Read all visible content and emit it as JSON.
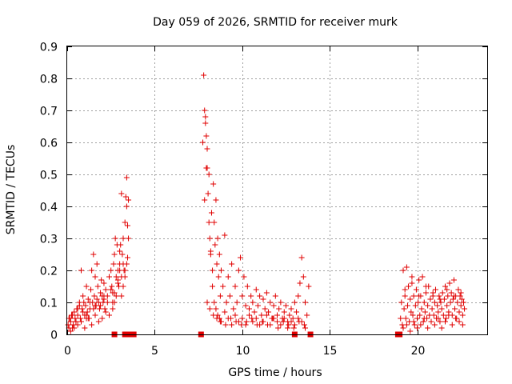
{
  "chart_data": {
    "type": "scatter",
    "title": "Day 059 of 2026, SRMTID for receiver murk",
    "xlabel": "GPS time / hours",
    "ylabel": "SRMTID / TECUs",
    "xlim": [
      0,
      24
    ],
    "ylim": [
      0,
      0.9
    ],
    "xticks": [
      0,
      5,
      10,
      15,
      20
    ],
    "yticks": [
      0,
      0.1,
      0.2,
      0.3,
      0.4,
      0.5,
      0.6,
      0.7,
      0.8,
      0.9
    ],
    "grid": true,
    "marker_color": "#e00000",
    "series": [
      {
        "marker": "plus",
        "x": [
          0.05,
          0.1,
          0.15,
          0.2,
          0.25,
          0.3,
          0.35,
          0.4,
          0.45,
          0.5,
          0.55,
          0.6,
          0.7,
          0.75,
          0.8,
          0.85,
          0.9,
          0.95,
          1.0,
          1.05,
          1.1,
          1.15,
          1.2,
          1.25,
          1.3,
          1.35,
          1.4,
          1.45,
          1.5,
          1.55,
          1.6,
          1.65,
          1.7,
          1.75,
          1.8,
          1.85,
          1.9,
          1.95,
          2.0,
          2.05,
          2.1,
          2.15,
          2.2,
          2.3,
          2.4,
          2.5,
          2.55,
          2.6,
          2.65,
          2.7,
          2.75,
          2.8,
          2.85,
          2.9,
          2.95,
          3.0,
          3.05,
          3.1,
          3.15,
          3.2,
          3.25,
          3.3,
          3.35,
          3.4,
          3.45,
          3.5,
          3.5,
          3.45,
          3.4,
          3.3,
          3.2,
          3.1,
          3.0,
          2.9,
          2.8,
          2.7,
          0.2,
          0.4,
          0.6,
          0.8,
          1.0,
          1.2,
          1.4,
          1.6,
          1.8,
          2.0,
          2.2,
          2.4,
          2.6,
          0.3,
          0.5,
          0.7,
          0.9,
          1.1,
          1.3,
          1.5,
          1.7,
          1.9,
          2.1,
          2.3,
          2.5,
          2.7,
          2.9,
          3.1,
          3.3,
          0.1,
          0.6,
          1.1,
          1.6,
          2.1,
          2.6,
          3.0,
          3.2,
          3.4
        ],
        "y": [
          0.03,
          0.02,
          0.05,
          0.04,
          0.06,
          0.02,
          0.03,
          0.07,
          0.05,
          0.04,
          0.08,
          0.06,
          0.1,
          0.05,
          0.2,
          0.08,
          0.12,
          0.1,
          0.06,
          0.09,
          0.15,
          0.07,
          0.11,
          0.05,
          0.08,
          0.14,
          0.2,
          0.1,
          0.25,
          0.12,
          0.18,
          0.09,
          0.22,
          0.15,
          0.1,
          0.08,
          0.13,
          0.17,
          0.12,
          0.1,
          0.16,
          0.08,
          0.14,
          0.12,
          0.18,
          0.2,
          0.15,
          0.1,
          0.22,
          0.25,
          0.3,
          0.18,
          0.28,
          0.2,
          0.15,
          0.22,
          0.28,
          0.44,
          0.25,
          0.3,
          0.2,
          0.35,
          0.43,
          0.49,
          0.24,
          0.42,
          0.3,
          0.34,
          0.22,
          0.18,
          0.15,
          0.12,
          0.2,
          0.17,
          0.12,
          0.1,
          0.01,
          0.02,
          0.03,
          0.04,
          0.02,
          0.05,
          0.03,
          0.06,
          0.04,
          0.05,
          0.07,
          0.06,
          0.08,
          0.06,
          0.04,
          0.09,
          0.07,
          0.05,
          0.1,
          0.08,
          0.11,
          0.09,
          0.12,
          0.1,
          0.14,
          0.13,
          0.16,
          0.18,
          0.2,
          0.05,
          0.08,
          0.06,
          0.09,
          0.11,
          0.13,
          0.26,
          0.22,
          0.4
        ]
      },
      {
        "marker": "plus",
        "x": [
          7.75,
          7.8,
          7.85,
          7.9,
          7.95,
          8.0,
          8.05,
          8.1,
          8.15,
          8.2,
          8.25,
          8.3,
          8.35,
          8.4,
          8.45,
          8.5,
          8.55,
          8.6,
          8.65,
          8.7,
          8.75,
          8.8,
          8.9,
          9.0,
          9.1,
          9.2,
          9.3,
          9.4,
          9.5,
          9.6,
          9.7,
          9.8,
          9.9,
          10.0,
          10.1,
          10.2,
          10.3,
          10.4,
          10.5,
          10.6,
          10.7,
          10.8,
          10.9,
          11.0,
          11.1,
          11.2,
          11.3,
          11.4,
          11.5,
          11.6,
          11.7,
          11.8,
          11.9,
          12.0,
          12.1,
          12.2,
          12.3,
          12.4,
          12.5,
          12.6,
          12.7,
          12.8,
          12.9,
          13.0,
          13.1,
          13.2,
          13.3,
          13.4,
          13.5,
          13.6,
          13.7,
          13.8,
          7.9,
          7.95,
          8.0,
          8.1,
          8.2,
          8.3,
          8.4,
          8.5,
          8.6,
          8.7,
          8.8,
          9.0,
          9.2,
          9.4,
          9.6,
          9.8,
          10.0,
          10.2,
          10.4,
          10.6,
          10.8,
          11.0,
          11.2,
          11.4,
          11.6,
          11.8,
          12.0,
          12.2,
          12.4,
          12.6,
          12.8,
          13.0,
          13.2,
          13.4,
          13.6,
          7.85,
          8.0,
          8.15,
          8.35,
          8.55,
          8.75,
          9.05,
          9.35,
          9.65,
          9.95,
          10.25,
          10.55,
          10.85,
          11.15,
          11.45,
          11.75,
          12.05,
          12.35,
          12.65,
          12.95,
          13.25,
          13.55
        ],
        "y": [
          0.6,
          0.81,
          0.7,
          0.66,
          0.52,
          0.58,
          0.44,
          0.5,
          0.3,
          0.25,
          0.38,
          0.2,
          0.47,
          0.35,
          0.28,
          0.42,
          0.22,
          0.3,
          0.18,
          0.25,
          0.12,
          0.2,
          0.15,
          0.31,
          0.1,
          0.18,
          0.12,
          0.22,
          0.08,
          0.15,
          0.1,
          0.2,
          0.24,
          0.12,
          0.18,
          0.09,
          0.15,
          0.08,
          0.12,
          0.1,
          0.07,
          0.14,
          0.09,
          0.12,
          0.06,
          0.11,
          0.08,
          0.13,
          0.07,
          0.1,
          0.05,
          0.09,
          0.12,
          0.06,
          0.08,
          0.1,
          0.05,
          0.07,
          0.09,
          0.04,
          0.06,
          0.08,
          0.05,
          0.1,
          0.07,
          0.12,
          0.16,
          0.24,
          0.18,
          0.1,
          0.06,
          0.15,
          0.68,
          0.62,
          0.52,
          0.35,
          0.26,
          0.15,
          0.1,
          0.08,
          0.06,
          0.05,
          0.04,
          0.07,
          0.05,
          0.03,
          0.06,
          0.04,
          0.05,
          0.03,
          0.06,
          0.04,
          0.05,
          0.03,
          0.04,
          0.06,
          0.03,
          0.05,
          0.04,
          0.03,
          0.05,
          0.02,
          0.04,
          0.03,
          0.05,
          0.04,
          0.02,
          0.42,
          0.1,
          0.08,
          0.06,
          0.05,
          0.04,
          0.03,
          0.05,
          0.04,
          0.03,
          0.04,
          0.05,
          0.03,
          0.04,
          0.03,
          0.05,
          0.02,
          0.04,
          0.03,
          0.02,
          0.04,
          0.03
        ]
      },
      {
        "marker": "plus",
        "x": [
          19.05,
          19.1,
          19.15,
          19.2,
          19.25,
          19.3,
          19.35,
          19.4,
          19.45,
          19.5,
          19.55,
          19.6,
          19.65,
          19.7,
          19.75,
          19.8,
          19.85,
          19.9,
          19.95,
          20.0,
          20.05,
          20.1,
          20.15,
          20.2,
          20.25,
          20.3,
          20.35,
          20.4,
          20.45,
          20.5,
          20.55,
          20.6,
          20.65,
          20.7,
          20.75,
          20.8,
          20.85,
          20.9,
          20.95,
          21.0,
          21.05,
          21.1,
          21.15,
          21.2,
          21.25,
          21.3,
          21.35,
          21.4,
          21.45,
          21.5,
          21.55,
          21.6,
          21.65,
          21.7,
          21.75,
          21.8,
          21.85,
          21.9,
          21.95,
          22.0,
          22.05,
          22.1,
          22.15,
          22.2,
          22.25,
          22.3,
          22.35,
          22.4,
          22.45,
          22.5,
          22.55,
          22.6,
          22.65,
          22.7,
          19.2,
          19.4,
          19.6,
          19.8,
          20.0,
          20.2,
          20.4,
          20.6,
          20.8,
          21.0,
          21.2,
          21.4,
          21.6,
          21.8,
          22.0,
          22.2,
          22.4,
          22.6,
          19.3,
          19.7,
          20.1,
          20.5,
          20.9,
          21.3,
          21.7,
          22.1,
          22.5
        ],
        "y": [
          0.05,
          0.1,
          0.03,
          0.2,
          0.08,
          0.12,
          0.05,
          0.21,
          0.09,
          0.15,
          0.04,
          0.11,
          0.07,
          0.18,
          0.06,
          0.12,
          0.03,
          0.09,
          0.14,
          0.05,
          0.1,
          0.17,
          0.06,
          0.12,
          0.08,
          0.18,
          0.04,
          0.1,
          0.07,
          0.13,
          0.05,
          0.09,
          0.15,
          0.06,
          0.11,
          0.04,
          0.08,
          0.12,
          0.06,
          0.1,
          0.14,
          0.05,
          0.09,
          0.07,
          0.12,
          0.04,
          0.1,
          0.08,
          0.13,
          0.06,
          0.11,
          0.15,
          0.05,
          0.09,
          0.12,
          0.07,
          0.16,
          0.1,
          0.13,
          0.06,
          0.11,
          0.17,
          0.08,
          0.12,
          0.05,
          0.1,
          0.14,
          0.07,
          0.12,
          0.09,
          0.11,
          0.06,
          0.1,
          0.08,
          0.02,
          0.03,
          0.01,
          0.04,
          0.02,
          0.03,
          0.05,
          0.02,
          0.04,
          0.03,
          0.05,
          0.02,
          0.04,
          0.06,
          0.03,
          0.05,
          0.04,
          0.03,
          0.14,
          0.16,
          0.12,
          0.15,
          0.13,
          0.11,
          0.14,
          0.12,
          0.13
        ]
      },
      {
        "marker": "square",
        "x": [
          2.7,
          3.3,
          3.55,
          3.6,
          3.65,
          3.7,
          3.75,
          3.8,
          7.65,
          13.0,
          13.9,
          18.9,
          19.0
        ],
        "y": [
          0,
          0,
          0,
          0,
          0,
          0,
          0,
          0,
          0,
          0,
          0,
          0,
          0
        ]
      }
    ]
  }
}
